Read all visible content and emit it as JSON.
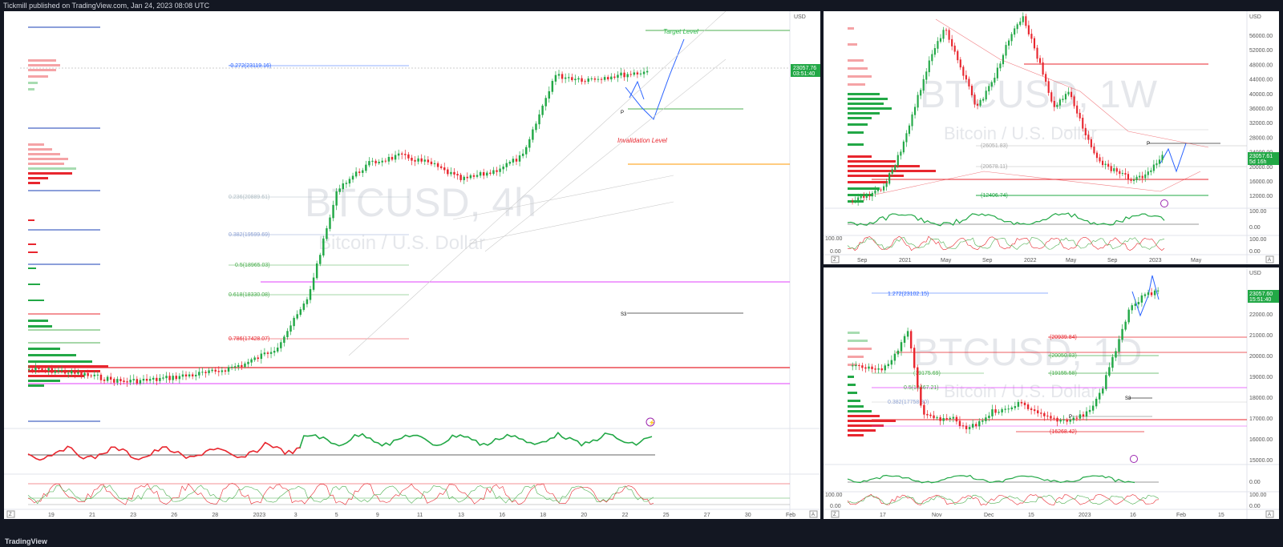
{
  "header": {
    "published": "Tickmill published on TradingView.com, Jan 24, 2023 08:08 UTC"
  },
  "footer": {
    "brand": "TradingView"
  },
  "colors": {
    "up": "#22a846",
    "down": "#e8262e",
    "projection": "#2962ff",
    "target": "#2eb84a",
    "invalidation": "#e8262e"
  },
  "main": {
    "watermark_symbol": "BTCUSD, 4h",
    "watermark_name": "Bitcoin / U.S. Dollar",
    "currency": "USD",
    "price_tag": "23057.76",
    "price_tag_time": "03:51:40",
    "target_label": "Target Level",
    "invalidation_label": "Invalidation Level",
    "pivot_p": "P",
    "pivot_s3": "S3",
    "x_ticks": [
      "19",
      "21",
      "23",
      "26",
      "28",
      "2023",
      "3",
      "5",
      "9",
      "11",
      "13",
      "16",
      "18",
      "20",
      "22",
      "25",
      "27",
      "30",
      "Feb"
    ],
    "fib_levels": [
      {
        "label": "-0.272(23119.16)",
        "color": "#2962ff"
      },
      {
        "label": "0.236(20889.61)",
        "color": "#b0bec5"
      },
      {
        "label": "0.382(19599.69)",
        "color": "#90a4d4"
      },
      {
        "label": "0.5(18965.03)",
        "color": "#4caf50"
      },
      {
        "label": "0.618(18330.08)",
        "color": "#4caf50"
      },
      {
        "label": "0.786(17428.07)",
        "color": "#e8262e"
      }
    ]
  },
  "weekly": {
    "watermark_symbol": "BTCUSD, 1W",
    "watermark_name": "Bitcoin / U.S. Dollar",
    "currency": "USD",
    "price_tag": "23057.61",
    "price_tag_time": "5d 16h",
    "pivot_p": "P",
    "y_ticks": [
      "56000.00",
      "52000.00",
      "48000.00",
      "44000.00",
      "40000.00",
      "36000.00",
      "32000.00",
      "28000.00",
      "24000.00",
      "20000.00",
      "16000.00",
      "12000.00"
    ],
    "osc_ticks": [
      "100.00",
      "0.00",
      "100.00",
      "0.00"
    ],
    "x_ticks": [
      "Sep",
      "2021",
      "May",
      "Sep",
      "2022",
      "May",
      "Sep",
      "2023",
      "May"
    ],
    "levels": [
      {
        "label": "(26051.83)"
      },
      {
        "label": "(20678.11)"
      },
      {
        "label": "(12406.74)"
      }
    ]
  },
  "daily": {
    "watermark_symbol": "BTCUSD, 1D",
    "watermark_name": "Bitcoin / U.S. Dollar",
    "currency": "USD",
    "price_tag": "23057.60",
    "price_tag_time": "15:51:40",
    "pivot_p": "P",
    "pivot_s3": "S3",
    "y_ticks": [
      "23000.00",
      "22000.00",
      "21000.00",
      "20000.00",
      "19000.00",
      "18000.00",
      "17000.00",
      "16000.00",
      "15000.00"
    ],
    "osc_ticks": [
      "0.00",
      "100.00",
      "0.00"
    ],
    "x_ticks": [
      "17",
      "Nov",
      "Dec",
      "15",
      "2023",
      "16",
      "Feb",
      "15"
    ],
    "levels": [
      {
        "label": "1.272(23102.15)",
        "color": "#2962ff"
      },
      {
        "label": "(20939.84)",
        "color": "#e8262e"
      },
      {
        "label": "(20050.83)",
        "color": "#4caf50"
      },
      {
        "label": "(19155.58)",
        "color": "#4caf50"
      },
      {
        "label": "(19175.69)",
        "color": "#4caf50"
      },
      {
        "label": "0.5(18467.21)",
        "color": "#4caf50"
      },
      {
        "label": "0.382(17758.80)",
        "color": "#90a4d4"
      },
      {
        "label": "(16268.42)",
        "color": "#e8262e"
      }
    ]
  }
}
